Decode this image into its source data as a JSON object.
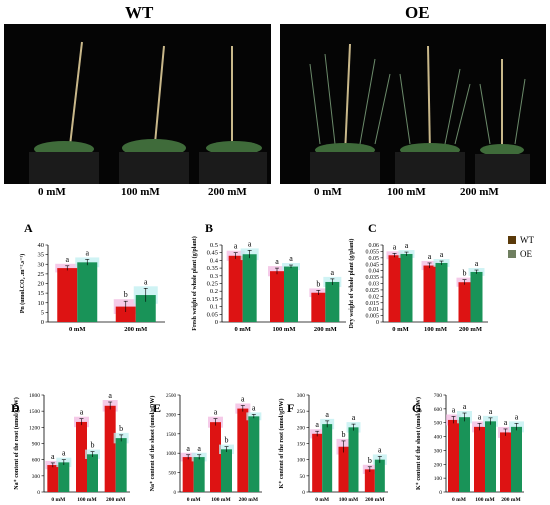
{
  "photo_panels": [
    {
      "title": "WT",
      "concentrations": [
        "0 mM",
        "100 mM",
        "200 mM"
      ]
    },
    {
      "title": "OE",
      "concentrations": [
        "0 mM",
        "100 mM",
        "200 mM"
      ]
    }
  ],
  "colors": {
    "WT": "#dd1313",
    "OE": "#199358",
    "WT_err": "#f2b8e0",
    "OE_err": "#bfeff0",
    "legend_WT": "#5a3a0a",
    "legend_OE": "#6f7f60"
  },
  "legend": {
    "labels": [
      "WT",
      "OE"
    ]
  },
  "chart_data": [
    {
      "panel": "A",
      "type": "bar",
      "categories": [
        "0 mM",
        "200 mM"
      ],
      "ylabel": "Pn (umol.CO₂ .m⁻².s⁻¹)",
      "ylim": [
        0,
        40
      ],
      "yticks": [
        0,
        5,
        10,
        15,
        20,
        25,
        30,
        35,
        40
      ],
      "series": [
        {
          "name": "WT",
          "values": [
            28,
            8
          ],
          "errors": [
            1.2,
            2.8
          ],
          "letters": [
            "a",
            "b"
          ]
        },
        {
          "name": "OE",
          "values": [
            31,
            14
          ],
          "errors": [
            1.5,
            3.5
          ],
          "letters": [
            "a",
            "a"
          ]
        }
      ]
    },
    {
      "panel": "B",
      "type": "bar",
      "categories": [
        "0 mM",
        "100 mM",
        "200 mM"
      ],
      "ylabel": "Fresh weight of whole plant (g/plant)",
      "ylim": [
        0,
        0.5
      ],
      "yticks": [
        0,
        0.05,
        0.1,
        0.15,
        0.2,
        0.25,
        0.3,
        0.35,
        0.4,
        0.45,
        0.5
      ],
      "series": [
        {
          "name": "WT",
          "values": [
            0.43,
            0.33,
            0.19
          ],
          "errors": [
            0.02,
            0.02,
            0.015
          ],
          "letters": [
            "a",
            "a",
            "b"
          ]
        },
        {
          "name": "OE",
          "values": [
            0.44,
            0.36,
            0.26
          ],
          "errors": [
            0.025,
            0.01,
            0.02
          ],
          "letters": [
            "a",
            "a",
            "a"
          ]
        }
      ]
    },
    {
      "panel": "C",
      "type": "bar",
      "categories": [
        "0 mM",
        "100 mM",
        "200 mM"
      ],
      "ylabel": "Dry weight of whole plant (g/plant)",
      "ylim": [
        0,
        0.06
      ],
      "yticks": [
        0,
        0.005,
        0.01,
        0.015,
        0.02,
        0.025,
        0.03,
        0.035,
        0.04,
        0.045,
        0.05,
        0.055,
        0.06
      ],
      "series": [
        {
          "name": "WT",
          "values": [
            0.052,
            0.044,
            0.031
          ],
          "errors": [
            0.0015,
            0.002,
            0.002
          ],
          "letters": [
            "a",
            "a",
            "b"
          ]
        },
        {
          "name": "OE",
          "values": [
            0.053,
            0.046,
            0.039
          ],
          "errors": [
            0.0015,
            0.0015,
            0.0015
          ],
          "letters": [
            "a",
            "a",
            "a"
          ]
        }
      ]
    },
    {
      "panel": "D",
      "type": "bar",
      "categories": [
        "0 mM",
        "100 mM",
        "200 mM"
      ],
      "ylabel": "Na⁺ content of the root (umol/gDW)",
      "ylim": [
        0,
        1800
      ],
      "yticks": [
        0,
        300,
        600,
        900,
        1200,
        1500,
        1800
      ],
      "series": [
        {
          "name": "WT",
          "values": [
            500,
            1300,
            1600
          ],
          "errors": [
            40,
            60,
            70
          ],
          "letters": [
            "a",
            "a",
            "a"
          ]
        },
        {
          "name": "OE",
          "values": [
            550,
            700,
            1000
          ],
          "errors": [
            50,
            50,
            60
          ],
          "letters": [
            "a",
            "b",
            "b"
          ]
        }
      ]
    },
    {
      "panel": "E",
      "type": "bar",
      "categories": [
        "0 mM",
        "100 mM",
        "200 mM"
      ],
      "ylabel": "Na⁺ content of the shoot (umol/gDW)",
      "ylim": [
        0,
        2500
      ],
      "yticks": [
        0,
        500,
        1000,
        1500,
        2000,
        2500
      ],
      "series": [
        {
          "name": "WT",
          "values": [
            900,
            1800,
            2150
          ],
          "errors": [
            60,
            90,
            80
          ],
          "letters": [
            "a",
            "a",
            "a"
          ]
        },
        {
          "name": "OE",
          "values": [
            900,
            1100,
            1950
          ],
          "errors": [
            60,
            70,
            50
          ],
          "letters": [
            "a",
            "b",
            "a"
          ]
        }
      ]
    },
    {
      "panel": "F",
      "type": "bar",
      "categories": [
        "0 mM",
        "100 mM",
        "200 mM"
      ],
      "ylabel": "K⁺ content of the root (umol/gDW)",
      "ylim": [
        0,
        300
      ],
      "yticks": [
        0,
        50,
        100,
        150,
        200,
        250,
        300
      ],
      "series": [
        {
          "name": "WT",
          "values": [
            180,
            140,
            70
          ],
          "errors": [
            8,
            18,
            8
          ],
          "letters": [
            "a",
            "b",
            "b"
          ]
        },
        {
          "name": "OE",
          "values": [
            210,
            200,
            100
          ],
          "errors": [
            10,
            10,
            10
          ],
          "letters": [
            "a",
            "a",
            "a"
          ]
        }
      ]
    },
    {
      "panel": "G",
      "type": "bar",
      "categories": [
        "0 mM",
        "100 mM",
        "200 mM"
      ],
      "ylabel": "K⁺ content of the shoot (umol/gDW)",
      "ylim": [
        0,
        700
      ],
      "yticks": [
        0,
        100,
        200,
        300,
        400,
        500,
        600,
        700
      ],
      "series": [
        {
          "name": "WT",
          "values": [
            520,
            470,
            430
          ],
          "errors": [
            25,
            25,
            25
          ],
          "letters": [
            "a",
            "a",
            "a"
          ]
        },
        {
          "name": "OE",
          "values": [
            540,
            510,
            470
          ],
          "errors": [
            30,
            25,
            25
          ],
          "letters": [
            "a",
            "a",
            "a"
          ]
        }
      ]
    }
  ]
}
